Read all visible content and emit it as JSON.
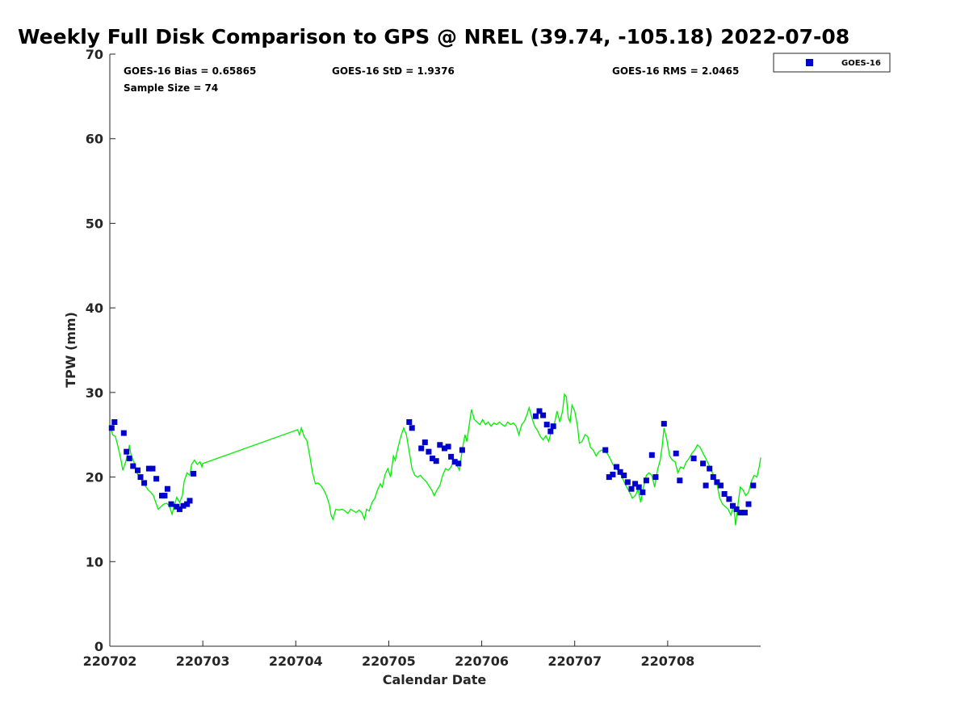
{
  "chart_data": {
    "type": "scatter",
    "title": "Weekly Full Disk Comparison to GPS @ NREL (39.74, -105.18) 2022-07-08",
    "xlabel": "Calendar Date",
    "ylabel": "TPW (mm)",
    "xlim": [
      0,
      7
    ],
    "ylim": [
      0,
      70
    ],
    "x_tick_labels": [
      "220702",
      "220703",
      "220704",
      "220705",
      "220706",
      "220707",
      "220708"
    ],
    "x_tick_values": [
      0,
      1,
      2,
      3,
      4,
      5,
      6
    ],
    "y_tick_labels": [
      "0",
      "10",
      "20",
      "30",
      "40",
      "50",
      "60",
      "70"
    ],
    "y_tick_values": [
      0,
      10,
      20,
      30,
      40,
      50,
      60,
      70
    ],
    "stats": {
      "bias": "GOES-16 Bias = 0.65865",
      "std": "GOES-16 StD = 1.9376",
      "rms": "GOES-16 RMS = 2.0465",
      "sample_size": "Sample Size = 74"
    },
    "legend": {
      "label": "GOES-16",
      "position": "top-right outside",
      "color": "#0000cc"
    },
    "colors": {
      "goes": "#0000cc",
      "gps": "#00ee00"
    },
    "series": [
      {
        "name": "GOES-16",
        "marker": "square",
        "points": [
          [
            0.02,
            25.8
          ],
          [
            0.05,
            26.5
          ],
          [
            0.15,
            25.2
          ],
          [
            0.18,
            23.0
          ],
          [
            0.21,
            22.2
          ],
          [
            0.25,
            21.3
          ],
          [
            0.3,
            20.8
          ],
          [
            0.33,
            20.0
          ],
          [
            0.37,
            19.3
          ],
          [
            0.42,
            21.0
          ],
          [
            0.46,
            21.0
          ],
          [
            0.5,
            19.8
          ],
          [
            0.56,
            17.8
          ],
          [
            0.59,
            17.8
          ],
          [
            0.62,
            18.6
          ],
          [
            0.66,
            16.8
          ],
          [
            0.72,
            16.5
          ],
          [
            0.75,
            16.2
          ],
          [
            0.79,
            16.6
          ],
          [
            0.83,
            16.8
          ],
          [
            0.86,
            17.2
          ],
          [
            0.9,
            20.4
          ],
          [
            3.22,
            26.5
          ],
          [
            3.25,
            25.8
          ],
          [
            3.35,
            23.4
          ],
          [
            3.39,
            24.1
          ],
          [
            3.43,
            23.0
          ],
          [
            3.47,
            22.2
          ],
          [
            3.51,
            21.9
          ],
          [
            3.55,
            23.8
          ],
          [
            3.6,
            23.4
          ],
          [
            3.64,
            23.6
          ],
          [
            3.67,
            22.4
          ],
          [
            3.71,
            21.8
          ],
          [
            3.75,
            21.6
          ],
          [
            3.79,
            23.2
          ],
          [
            4.58,
            27.2
          ],
          [
            4.62,
            27.8
          ],
          [
            4.66,
            27.3
          ],
          [
            4.7,
            26.2
          ],
          [
            4.74,
            25.4
          ],
          [
            4.77,
            26.0
          ],
          [
            5.33,
            23.2
          ],
          [
            5.37,
            20.0
          ],
          [
            5.41,
            20.3
          ],
          [
            5.45,
            21.2
          ],
          [
            5.49,
            20.6
          ],
          [
            5.53,
            20.2
          ],
          [
            5.57,
            19.4
          ],
          [
            5.61,
            18.6
          ],
          [
            5.65,
            19.2
          ],
          [
            5.69,
            18.8
          ],
          [
            5.73,
            18.2
          ],
          [
            5.77,
            19.6
          ],
          [
            5.83,
            22.6
          ],
          [
            5.87,
            20.0
          ],
          [
            5.96,
            26.3
          ],
          [
            6.09,
            22.8
          ],
          [
            6.13,
            19.6
          ],
          [
            6.28,
            22.2
          ],
          [
            6.38,
            21.6
          ],
          [
            6.41,
            19.0
          ],
          [
            6.45,
            21.0
          ],
          [
            6.49,
            20.0
          ],
          [
            6.53,
            19.4
          ],
          [
            6.57,
            19.0
          ],
          [
            6.61,
            18.0
          ],
          [
            6.66,
            17.4
          ],
          [
            6.7,
            16.6
          ],
          [
            6.74,
            16.2
          ],
          [
            6.78,
            15.8
          ],
          [
            6.83,
            15.8
          ],
          [
            6.87,
            16.8
          ],
          [
            6.92,
            19.0
          ]
        ]
      },
      {
        "name": "GPS",
        "marker": "line",
        "points": [
          [
            0.0,
            26.2
          ],
          [
            0.03,
            25.0
          ],
          [
            0.06,
            24.8
          ],
          [
            0.09,
            23.5
          ],
          [
            0.12,
            22.0
          ],
          [
            0.14,
            20.8
          ],
          [
            0.17,
            21.8
          ],
          [
            0.2,
            23.0
          ],
          [
            0.21,
            23.8
          ],
          [
            0.23,
            22.5
          ],
          [
            0.26,
            21.8
          ],
          [
            0.29,
            20.5
          ],
          [
            0.32,
            20.0
          ],
          [
            0.35,
            19.5
          ],
          [
            0.38,
            19.0
          ],
          [
            0.41,
            18.5
          ],
          [
            0.44,
            18.2
          ],
          [
            0.47,
            17.8
          ],
          [
            0.5,
            16.8
          ],
          [
            0.52,
            16.2
          ],
          [
            0.55,
            16.5
          ],
          [
            0.58,
            16.8
          ],
          [
            0.61,
            16.9
          ],
          [
            0.64,
            16.6
          ],
          [
            0.67,
            15.6
          ],
          [
            0.69,
            16.5
          ],
          [
            0.72,
            17.6
          ],
          [
            0.75,
            17.0
          ],
          [
            0.78,
            17.8
          ],
          [
            0.8,
            19.5
          ],
          [
            0.83,
            20.5
          ],
          [
            0.86,
            20.2
          ],
          [
            0.88,
            21.5
          ],
          [
            0.91,
            22.0
          ],
          [
            0.94,
            21.5
          ],
          [
            0.97,
            21.8
          ],
          [
            0.99,
            21.2
          ],
          [
            1.0,
            21.6
          ],
          [
            2.02,
            25.6
          ],
          [
            2.04,
            25.0
          ],
          [
            2.06,
            25.8
          ],
          [
            2.09,
            24.8
          ],
          [
            2.12,
            24.3
          ],
          [
            2.15,
            22.5
          ],
          [
            2.18,
            20.5
          ],
          [
            2.21,
            19.2
          ],
          [
            2.24,
            19.3
          ],
          [
            2.27,
            19.0
          ],
          [
            2.3,
            18.5
          ],
          [
            2.33,
            17.8
          ],
          [
            2.36,
            16.8
          ],
          [
            2.38,
            15.5
          ],
          [
            2.4,
            15.0
          ],
          [
            2.43,
            16.2
          ],
          [
            2.46,
            16.1
          ],
          [
            2.5,
            16.2
          ],
          [
            2.53,
            16.0
          ],
          [
            2.56,
            15.7
          ],
          [
            2.59,
            16.2
          ],
          [
            2.62,
            16.0
          ],
          [
            2.65,
            15.8
          ],
          [
            2.68,
            16.1
          ],
          [
            2.71,
            15.8
          ],
          [
            2.74,
            15.0
          ],
          [
            2.76,
            16.2
          ],
          [
            2.79,
            16.0
          ],
          [
            2.82,
            17.0
          ],
          [
            2.85,
            17.5
          ],
          [
            2.88,
            18.5
          ],
          [
            2.91,
            19.2
          ],
          [
            2.93,
            18.8
          ],
          [
            2.96,
            20.3
          ],
          [
            2.99,
            21.0
          ],
          [
            3.02,
            20.0
          ],
          [
            3.05,
            22.5
          ],
          [
            3.07,
            22.0
          ],
          [
            3.1,
            23.5
          ],
          [
            3.13,
            24.8
          ],
          [
            3.16,
            25.8
          ],
          [
            3.19,
            25.0
          ],
          [
            3.22,
            23.0
          ],
          [
            3.25,
            21.0
          ],
          [
            3.28,
            20.2
          ],
          [
            3.31,
            20.0
          ],
          [
            3.34,
            20.2
          ],
          [
            3.37,
            19.8
          ],
          [
            3.4,
            19.5
          ],
          [
            3.43,
            19.0
          ],
          [
            3.46,
            18.5
          ],
          [
            3.49,
            17.8
          ],
          [
            3.52,
            18.5
          ],
          [
            3.55,
            19.0
          ],
          [
            3.58,
            20.2
          ],
          [
            3.61,
            21.0
          ],
          [
            3.64,
            20.8
          ],
          [
            3.67,
            21.2
          ],
          [
            3.7,
            22.0
          ],
          [
            3.73,
            21.5
          ],
          [
            3.76,
            20.8
          ],
          [
            3.79,
            23.2
          ],
          [
            3.82,
            25.0
          ],
          [
            3.84,
            24.2
          ],
          [
            3.87,
            26.5
          ],
          [
            3.89,
            28.0
          ],
          [
            3.92,
            26.8
          ],
          [
            3.95,
            26.5
          ],
          [
            3.98,
            26.2
          ],
          [
            4.01,
            26.8
          ],
          [
            4.04,
            26.2
          ],
          [
            4.07,
            26.5
          ],
          [
            4.1,
            26.0
          ],
          [
            4.13,
            26.4
          ],
          [
            4.16,
            26.2
          ],
          [
            4.19,
            26.5
          ],
          [
            4.22,
            26.2
          ],
          [
            4.25,
            26.0
          ],
          [
            4.28,
            26.5
          ],
          [
            4.31,
            26.2
          ],
          [
            4.34,
            26.4
          ],
          [
            4.37,
            26.0
          ],
          [
            4.4,
            25.0
          ],
          [
            4.43,
            26.2
          ],
          [
            4.46,
            26.6
          ],
          [
            4.49,
            27.5
          ],
          [
            4.51,
            28.2
          ],
          [
            4.54,
            27.0
          ],
          [
            4.57,
            26.0
          ],
          [
            4.6,
            25.5
          ],
          [
            4.63,
            24.8
          ],
          [
            4.66,
            24.4
          ],
          [
            4.69,
            24.9
          ],
          [
            4.72,
            24.2
          ],
          [
            4.75,
            25.5
          ],
          [
            4.78,
            26.2
          ],
          [
            4.81,
            27.8
          ],
          [
            4.84,
            26.5
          ],
          [
            4.87,
            27.8
          ],
          [
            4.89,
            29.8
          ],
          [
            4.91,
            29.5
          ],
          [
            4.93,
            27.0
          ],
          [
            4.95,
            26.5
          ],
          [
            4.97,
            28.5
          ],
          [
            5.0,
            27.8
          ],
          [
            5.03,
            26.0
          ],
          [
            5.05,
            24.0
          ],
          [
            5.08,
            24.2
          ],
          [
            5.11,
            25.0
          ],
          [
            5.14,
            24.8
          ],
          [
            5.17,
            23.5
          ],
          [
            5.2,
            23.2
          ],
          [
            5.23,
            22.5
          ],
          [
            5.26,
            23.0
          ],
          [
            5.29,
            23.2
          ],
          [
            5.32,
            23.0
          ],
          [
            5.35,
            22.8
          ],
          [
            5.38,
            22.2
          ],
          [
            5.41,
            21.5
          ],
          [
            5.44,
            21.0
          ],
          [
            5.47,
            20.8
          ],
          [
            5.5,
            20.2
          ],
          [
            5.53,
            19.5
          ],
          [
            5.56,
            18.8
          ],
          [
            5.59,
            18.2
          ],
          [
            5.62,
            17.5
          ],
          [
            5.65,
            17.8
          ],
          [
            5.68,
            18.5
          ],
          [
            5.71,
            17.0
          ],
          [
            5.74,
            18.8
          ],
          [
            5.77,
            20.2
          ],
          [
            5.8,
            20.5
          ],
          [
            5.83,
            20.2
          ],
          [
            5.86,
            18.8
          ],
          [
            5.89,
            20.8
          ],
          [
            5.92,
            22.0
          ],
          [
            5.94,
            23.5
          ],
          [
            5.96,
            25.8
          ],
          [
            5.99,
            24.5
          ],
          [
            6.02,
            22.5
          ],
          [
            6.05,
            22.0
          ],
          [
            6.08,
            21.8
          ],
          [
            6.11,
            20.5
          ],
          [
            6.14,
            21.2
          ],
          [
            6.17,
            21.0
          ],
          [
            6.2,
            21.8
          ],
          [
            6.23,
            22.2
          ],
          [
            6.26,
            22.8
          ],
          [
            6.29,
            23.2
          ],
          [
            6.32,
            23.8
          ],
          [
            6.35,
            23.5
          ],
          [
            6.38,
            22.8
          ],
          [
            6.41,
            22.2
          ],
          [
            6.44,
            21.5
          ],
          [
            6.47,
            20.8
          ],
          [
            6.5,
            20.0
          ],
          [
            6.53,
            19.2
          ],
          [
            6.56,
            17.5
          ],
          [
            6.59,
            16.8
          ],
          [
            6.62,
            16.5
          ],
          [
            6.65,
            16.2
          ],
          [
            6.68,
            15.5
          ],
          [
            6.71,
            16.8
          ],
          [
            6.73,
            14.3
          ],
          [
            6.75,
            16.2
          ],
          [
            6.78,
            18.8
          ],
          [
            6.81,
            18.5
          ],
          [
            6.84,
            17.8
          ],
          [
            6.87,
            18.2
          ],
          [
            6.9,
            19.5
          ],
          [
            6.93,
            20.2
          ],
          [
            6.96,
            20.0
          ],
          [
            6.99,
            21.5
          ],
          [
            7.0,
            22.3
          ]
        ]
      }
    ]
  }
}
